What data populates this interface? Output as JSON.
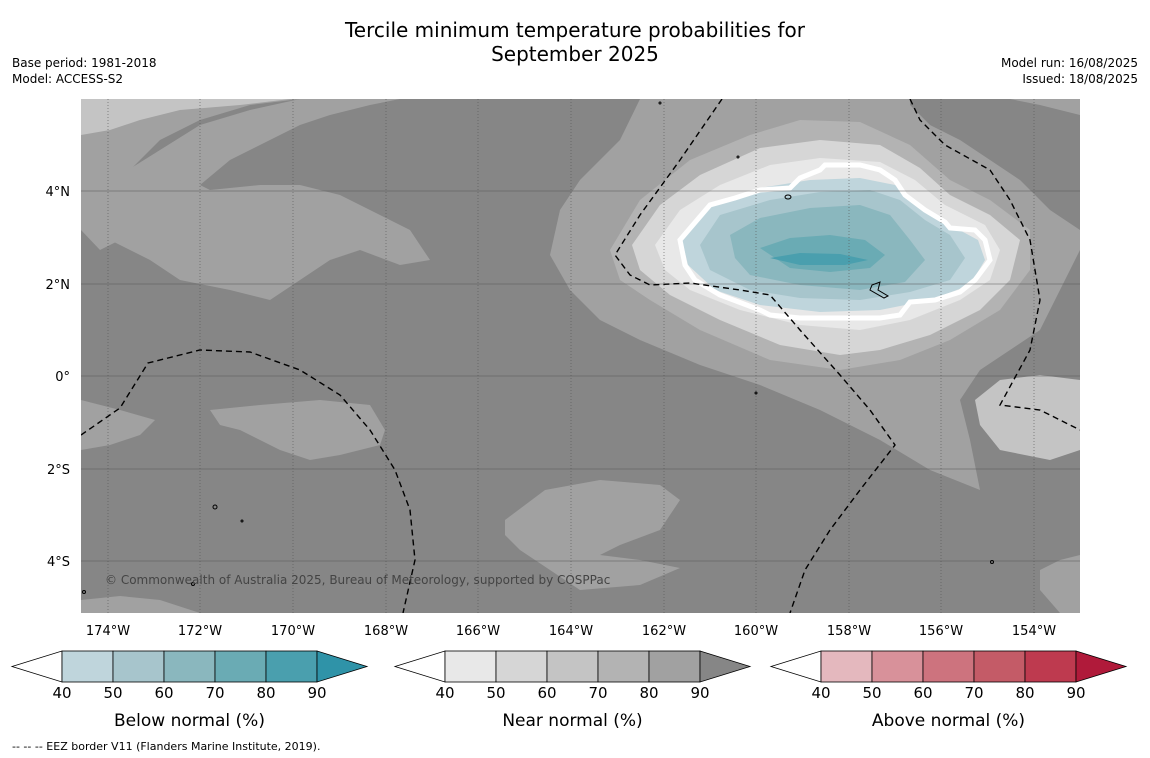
{
  "title": {
    "line1": "Tercile minimum temperature probabilities for",
    "line2": "September 2025"
  },
  "meta_left": {
    "base_period": "Base period: 1981-2018",
    "model": "Model: ACCESS-S2"
  },
  "meta_right": {
    "model_run": "Model run: 16/08/2025",
    "issued": "Issued: 18/08/2025"
  },
  "copyright": "© Commonwealth of Australia 2025, Bureau of Meteorology, supported by COSPPac",
  "axes": {
    "lon_ticks": [
      "174°W",
      "172°W",
      "170°W",
      "168°W",
      "166°W",
      "164°W",
      "162°W",
      "160°W",
      "158°W",
      "156°W",
      "154°W"
    ],
    "lat_ticks": [
      "4°N",
      "2°N",
      "0°",
      "2°S",
      "4°S"
    ]
  },
  "colorbars": [
    {
      "label": "Below normal (%)",
      "ticks": [
        "40",
        "50",
        "60",
        "70",
        "80",
        "90"
      ],
      "colors": [
        "#ffffff",
        "#bfd5dc",
        "#a7c5cc",
        "#8ab7be",
        "#6aabb4",
        "#4a9fae",
        "#2f93a8"
      ]
    },
    {
      "label": "Near normal (%)",
      "ticks": [
        "40",
        "50",
        "60",
        "70",
        "80",
        "90"
      ],
      "colors": [
        "#ffffff",
        "#e8e8e8",
        "#d6d6d6",
        "#c4c4c4",
        "#b3b3b3",
        "#a1a1a1",
        "#868686"
      ]
    },
    {
      "label": "Above normal (%)",
      "ticks": [
        "40",
        "50",
        "60",
        "70",
        "80",
        "90"
      ],
      "colors": [
        "#ffffff",
        "#e4b8be",
        "#d8919a",
        "#cd737e",
        "#c45b67",
        "#be3a4f",
        "#b01a3a"
      ]
    }
  ],
  "footnote": "--  --  -- EEZ border V11 (Flanders Marine Institute, 2019)."
}
